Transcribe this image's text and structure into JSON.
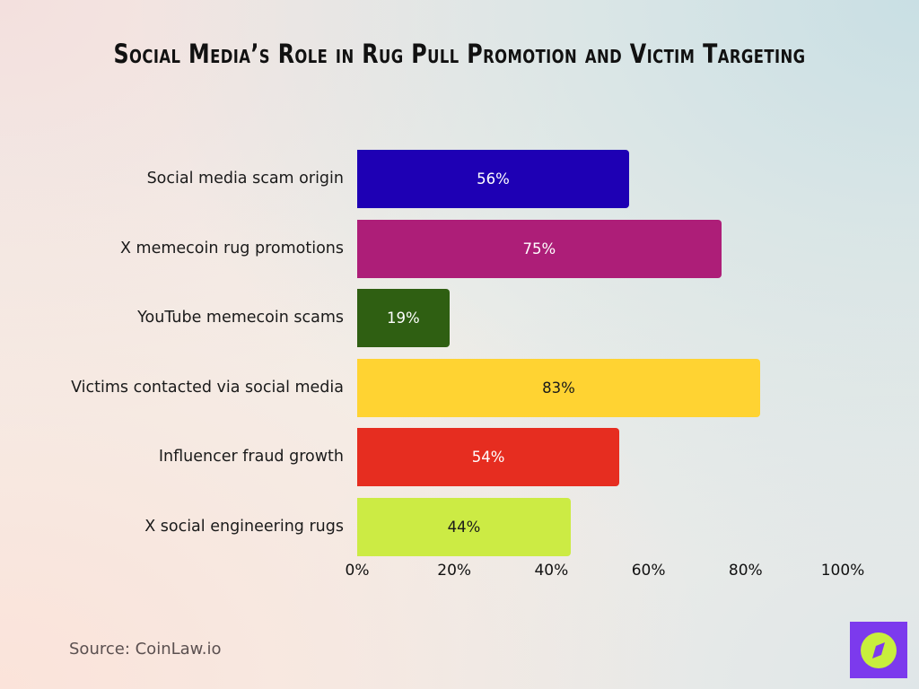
{
  "title": "Social Media’s Role in Rug Pull Promotion and Victim Targeting",
  "source": "Source: CoinLaw.io",
  "logo": {
    "icon": "compass-icon",
    "bg": "#7c3aed",
    "fg": "#c8ef3c"
  },
  "rows": [
    {
      "label": "Social media scam origin",
      "value": 56,
      "value_label": "56%",
      "color": "#1e00b4",
      "text_color": "#ffffff"
    },
    {
      "label": "X memecoin rug promotions",
      "value": 75,
      "value_label": "75%",
      "color": "#ad1e78",
      "text_color": "#ffffff"
    },
    {
      "label": "YouTube memecoin scams",
      "value": 19,
      "value_label": "19%",
      "color": "#2f5f12",
      "text_color": "#ffffff"
    },
    {
      "label": "Victims contacted via social media",
      "value": 83,
      "value_label": "83%",
      "color": "#ffd332",
      "text_color": "#1a1a1a"
    },
    {
      "label": "Influencer fraud growth",
      "value": 54,
      "value_label": "54%",
      "color": "#e62d20",
      "text_color": "#ffffff"
    },
    {
      "label": "X social engineering rugs",
      "value": 44,
      "value_label": "44%",
      "color": "#cceb44",
      "text_color": "#1a1a1a"
    }
  ],
  "x_ticks": [
    "0%",
    "20%",
    "40%",
    "60%",
    "80%",
    "100%"
  ],
  "chart_data": {
    "type": "bar",
    "orientation": "horizontal",
    "title": "Social Media’s Role in Rug Pull Promotion and Victim Targeting",
    "categories": [
      "Social media scam origin",
      "X memecoin rug promotions",
      "YouTube memecoin scams",
      "Victims contacted via social media",
      "Influencer fraud growth",
      "X social engineering rugs"
    ],
    "values": [
      56,
      75,
      19,
      83,
      54,
      44
    ],
    "data_labels": [
      "56%",
      "75%",
      "19%",
      "83%",
      "54%",
      "44%"
    ],
    "colors": [
      "#1e00b4",
      "#ad1e78",
      "#2f5f12",
      "#ffd332",
      "#e62d20",
      "#cceb44"
    ],
    "xlabel": "",
    "ylabel": "",
    "xlim": [
      0,
      100
    ],
    "x_tick_labels": [
      "0%",
      "20%",
      "40%",
      "60%",
      "80%",
      "100%"
    ],
    "grid": false,
    "legend": "none",
    "source": "Source: CoinLaw.io"
  }
}
